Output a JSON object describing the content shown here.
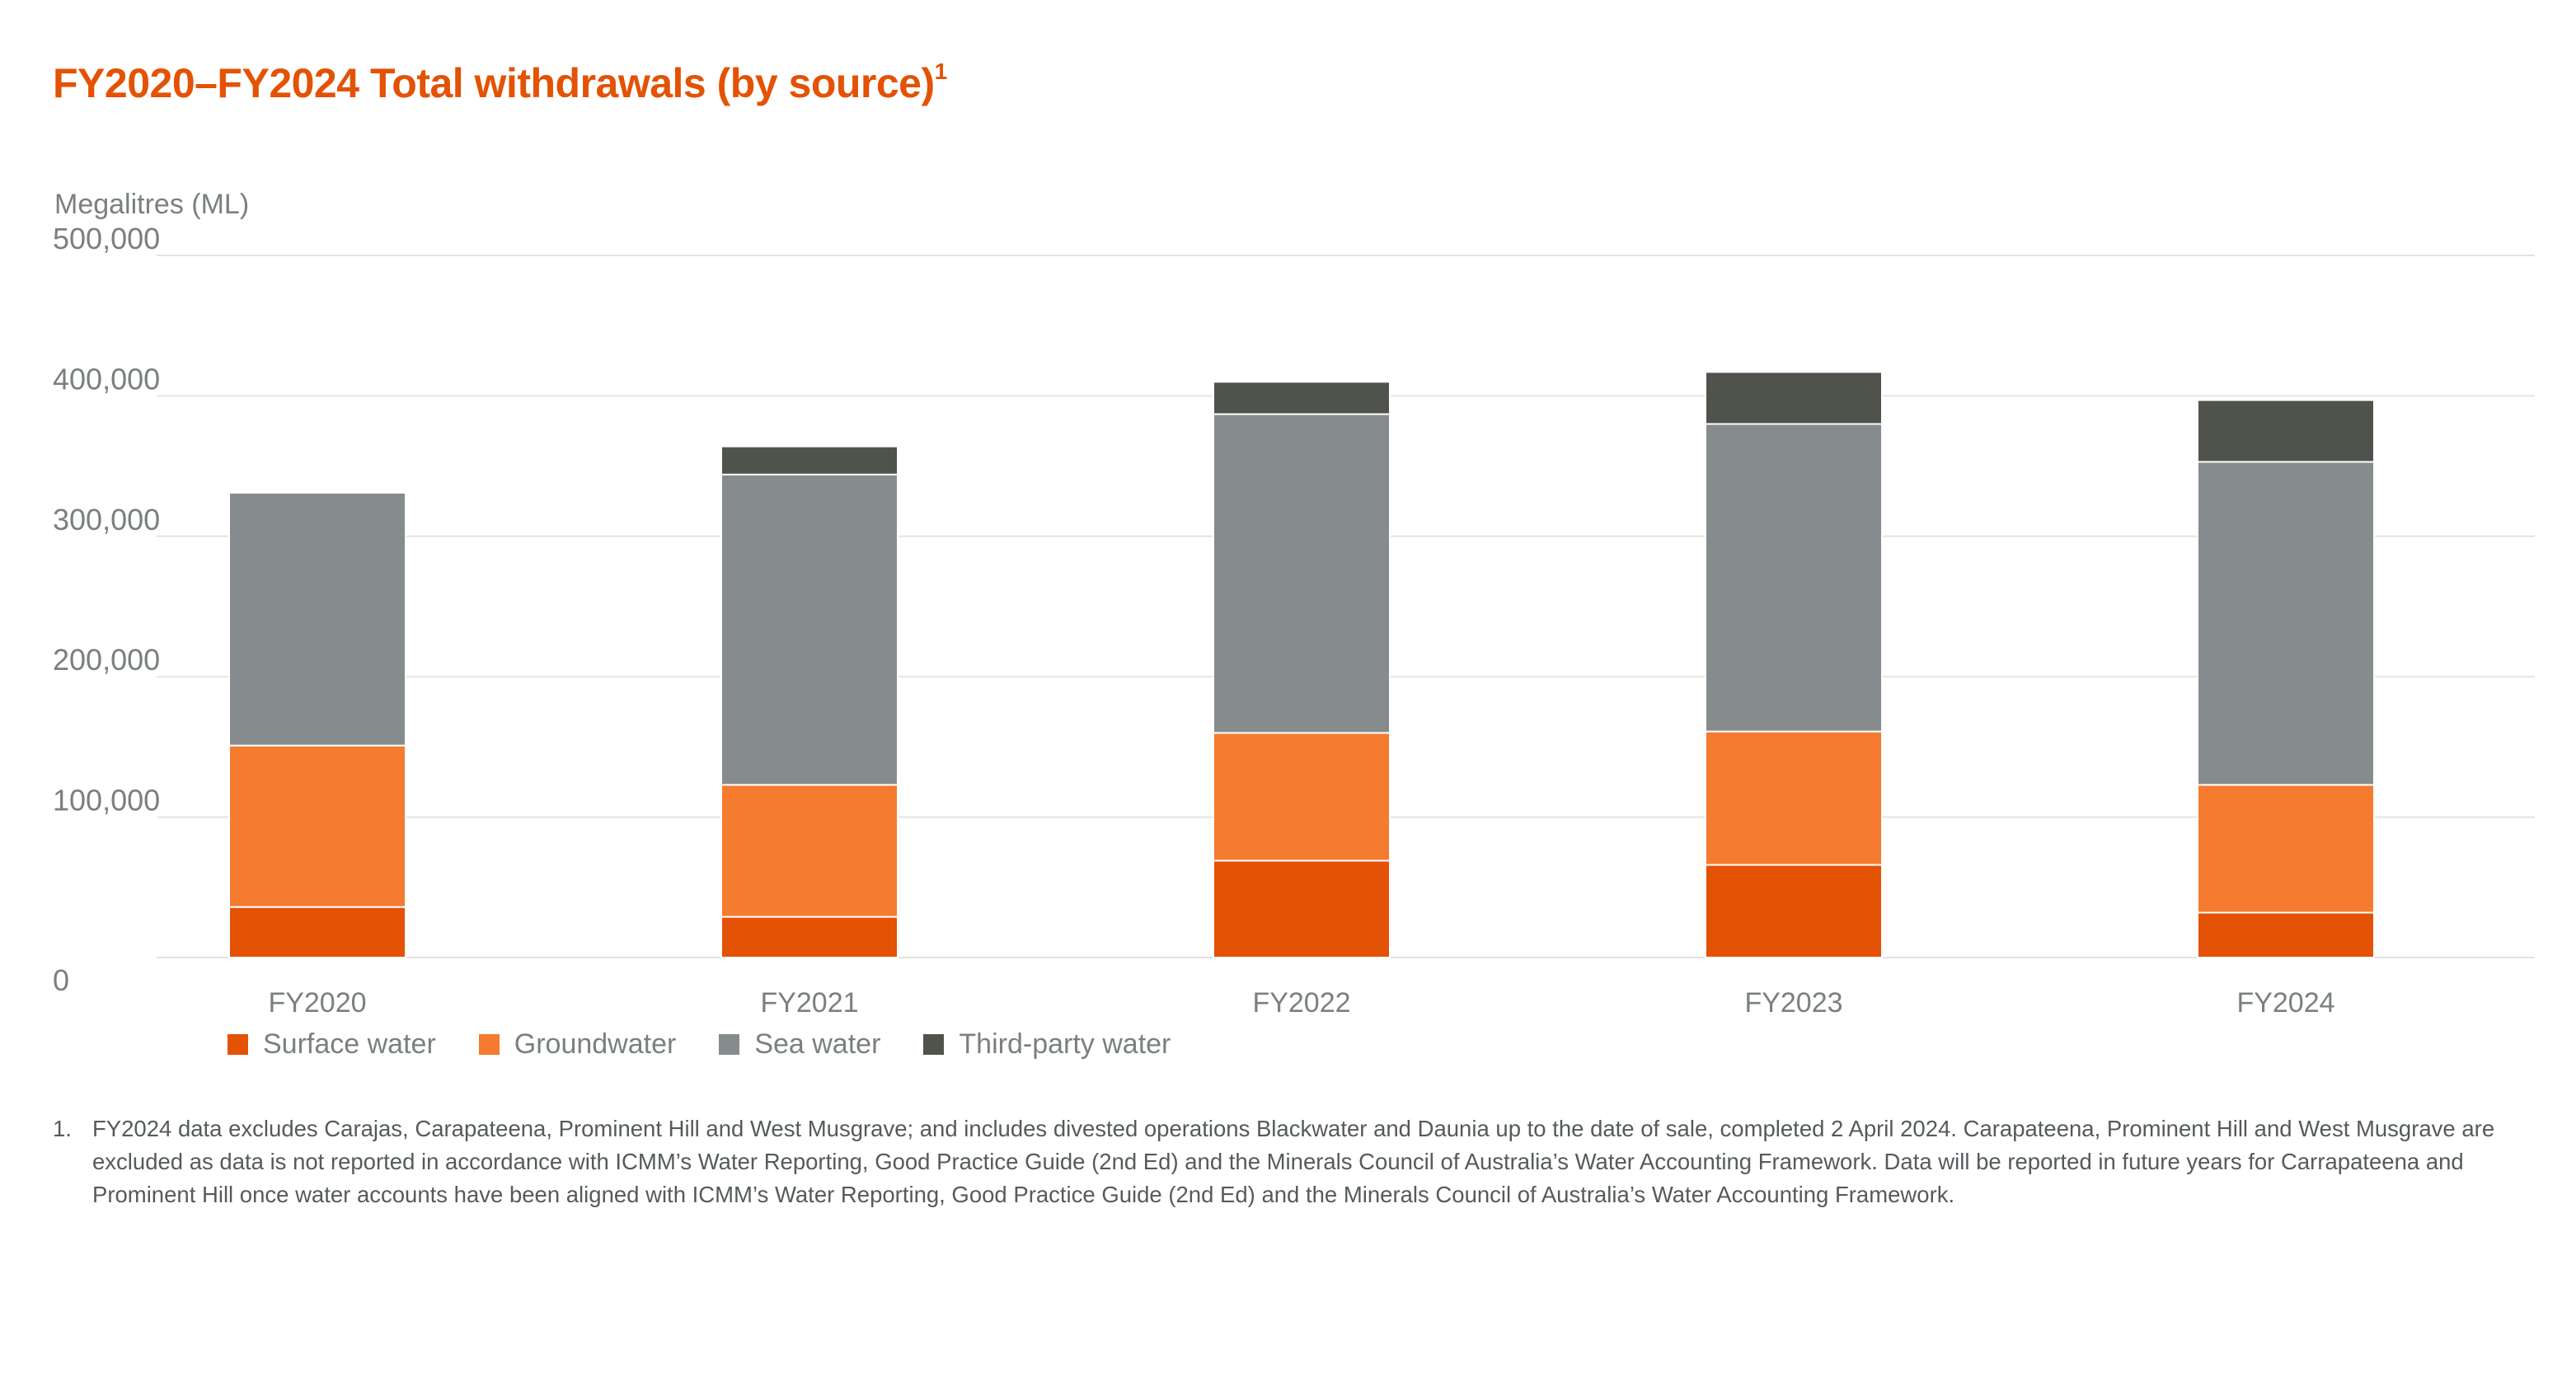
{
  "title": "FY2020–FY2024 Total withdrawals (by source)",
  "title_superscript": "1",
  "footnote": {
    "marker": "1.",
    "text": "FY2024 data excludes Carajas, Carapateena, Prominent Hill and West Musgrave; and includes divested operations Blackwater and Daunia up to the date of sale, completed 2 April 2024. Carapateena, Prominent Hill and West Musgrave are excluded as data is not reported in accordance with ICMM’s Water Reporting, Good Practice Guide (2nd Ed) and the Minerals Council of Australia’s Water Accounting Framework. Data will be reported in future years for Carrapateena and Prominent Hill once water accounts have been aligned with ICMM’s Water Reporting, Good Practice Guide (2nd Ed) and the Minerals Council of Australia’s Water Accounting Framework."
  },
  "chart_data": {
    "type": "bar",
    "stacked": true,
    "ylabel": "Megalitres (ML)",
    "ylim": [
      0,
      500000
    ],
    "yticks": [
      0,
      100000,
      200000,
      300000,
      400000,
      500000
    ],
    "ytick_labels": [
      "0",
      "100,000",
      "200,000",
      "300,000",
      "400,000",
      "500,000"
    ],
    "grid": true,
    "legend_position": "bottom-left",
    "categories": [
      "FY2020",
      "FY2021",
      "FY2022",
      "FY2023",
      "FY2024"
    ],
    "series": [
      {
        "name": "Surface water",
        "color": "#e35205",
        "values": [
          36000,
          29000,
          69000,
          66000,
          32000
        ]
      },
      {
        "name": "Groundwater",
        "color": "#f47b2f",
        "values": [
          115000,
          94000,
          91000,
          95000,
          91000
        ]
      },
      {
        "name": "Sea water",
        "color": "#868b8d",
        "values": [
          180000,
          221000,
          227000,
          219000,
          230000
        ]
      },
      {
        "name": "Third-party water",
        "color": "#50534c",
        "values": [
          0,
          20000,
          23000,
          37000,
          44000
        ]
      }
    ]
  }
}
